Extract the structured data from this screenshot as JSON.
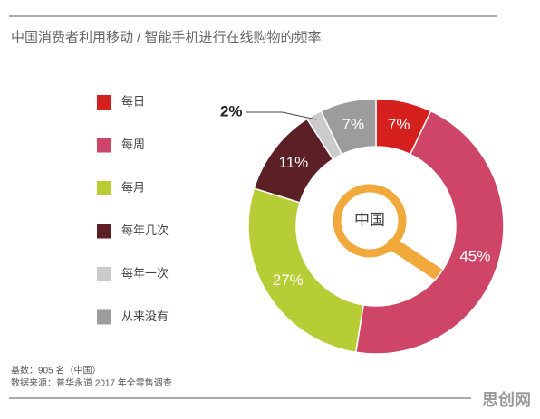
{
  "chart_data": {
    "type": "donut",
    "title": "中国消费者利用移动 / 智能手机进行在线购物的频率",
    "categories": [
      "每日",
      "每周",
      "每月",
      "每年几次",
      "每年一次",
      "从来没有"
    ],
    "values": [
      7,
      45,
      27,
      11,
      2,
      7
    ],
    "value_labels": [
      "7%",
      "45%",
      "27%",
      "11%",
      "2%",
      "7%"
    ],
    "colors": [
      "#d5201e",
      "#cf4567",
      "#b6cd35",
      "#5b1f25",
      "#cbcbcb",
      "#9c9c9c"
    ],
    "center_label": "中国",
    "notes": [
      "基数：905 名（中国）",
      "数据来源：普华永道 2017 年全零售调查"
    ],
    "watermark": "思创网"
  }
}
